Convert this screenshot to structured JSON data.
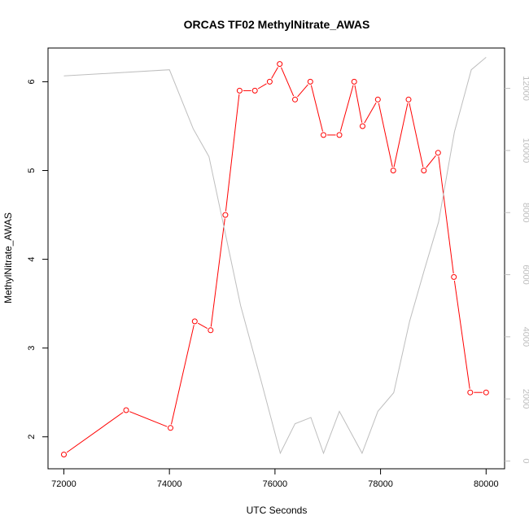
{
  "chart_data": {
    "type": "line",
    "title": "ORCAS TF02 MethylNitrate_AWAS",
    "xlabel": "UTC Seconds",
    "ylabel": "MethylNitrate_AWAS",
    "xlim": [
      71700,
      80350
    ],
    "ylim": [
      1.64,
      6.38
    ],
    "y2lim": [
      -250,
      13300
    ],
    "x_ticks": [
      72000,
      74000,
      76000,
      78000,
      80000
    ],
    "y_ticks": [
      2,
      3,
      4,
      5,
      6
    ],
    "y2_ticks": [
      0,
      2000,
      4000,
      6000,
      8000,
      10000,
      12000
    ],
    "grid": false,
    "series": [
      {
        "color": "#ff0000",
        "axis": "left",
        "markers": true,
        "x": [
          72000,
          73180,
          74020,
          74480,
          74780,
          75060,
          75330,
          75620,
          75900,
          76090,
          76380,
          76670,
          76920,
          77220,
          77500,
          77660,
          77950,
          78240,
          78530,
          78820,
          79090,
          79390,
          79700,
          80000
        ],
        "y": [
          1.8,
          2.3,
          2.1,
          3.3,
          3.2,
          4.5,
          5.9,
          5.9,
          6.0,
          6.2,
          5.8,
          6.0,
          5.4,
          5.4,
          6.0,
          5.5,
          5.8,
          5.0,
          5.8,
          5.0,
          5.2,
          3.8,
          2.5,
          2.5
        ]
      },
      {
        "color": "#bebebe",
        "axis": "right",
        "markers": false,
        "x": [
          72000,
          74000,
          74450,
          74750,
          75100,
          75350,
          75750,
          76100,
          76380,
          76680,
          76920,
          77220,
          77650,
          77950,
          78250,
          78550,
          78820,
          79100,
          79400,
          79720,
          80000
        ],
        "y": [
          12400,
          12600,
          10700,
          9800,
          7000,
          5000,
          2500,
          250,
          1200,
          1400,
          250,
          1600,
          250,
          1600,
          2200,
          4500,
          6100,
          7700,
          10600,
          12600,
          13000
        ]
      }
    ]
  }
}
